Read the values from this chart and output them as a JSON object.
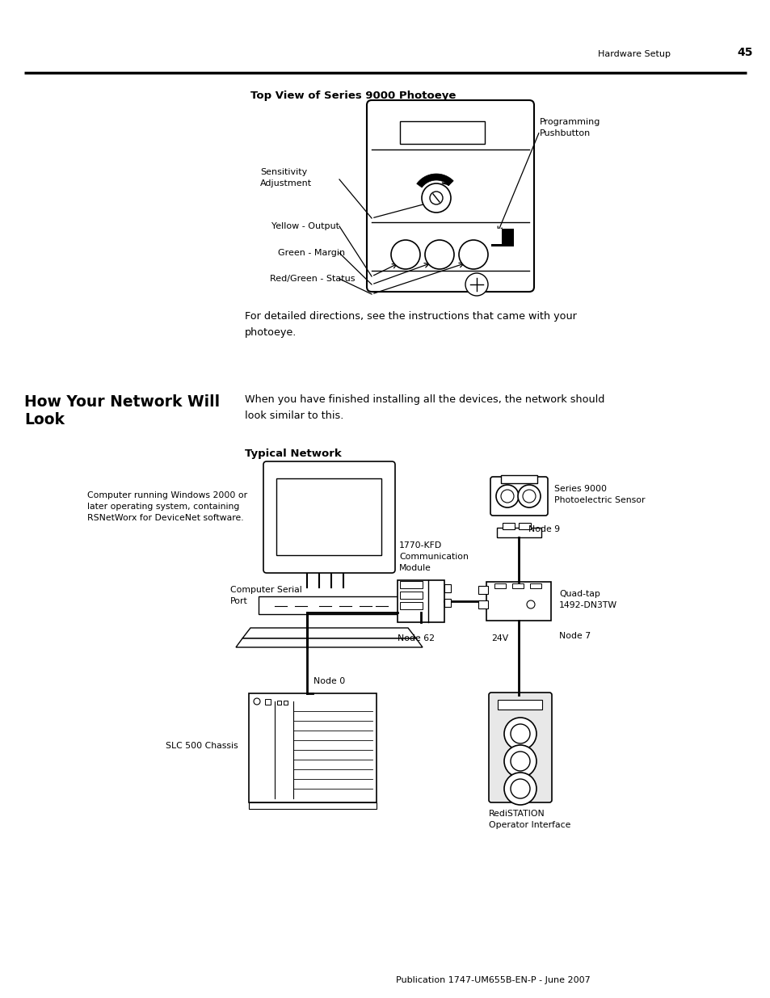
{
  "page_header_text": "Hardware Setup",
  "page_number": "45",
  "section1_title": "Top View of Series 9000 Photoeye",
  "photoeye_para": "For detailed directions, see the instructions that came with your\nphotoeye.",
  "section2_title": "How Your Network Will\nLook",
  "section2_para": "When you have finished installing all the devices, the network should\nlook similar to this.",
  "network_title": "Typical Network",
  "computer_label": "Computer running Windows 2000 or\nlater operating system, containing\nRSNetWorx for DeviceNet software.",
  "serial_port_label": "Computer Serial\nPort",
  "kfd_label": "1770-KFD\nCommunication\nModule",
  "node62_label": "Node 62",
  "quad_tap_label": "Quad-tap\n1492-DN3TW",
  "node7_label": "Node 7",
  "node9_label": "Node 9",
  "node0_label": "Node 0",
  "sensor_label": "Series 9000\nPhotoelectric Sensor",
  "slc_label": "SLC 500 Chassis",
  "redistation_label": "RediSTATION\nOperator Interface",
  "volt_label": "24V",
  "footer_text": "Publication 1747-UM655B-EN-P - June 2007",
  "sensitivity_label": "Sensitivity\nAdjustment",
  "yellow_label": "Yellow - Output",
  "green_label": "Green - Margin",
  "redgreen_label": "Red/Green - Status",
  "prog_label": "Programming\nPushbutton",
  "bg_color": "#ffffff"
}
